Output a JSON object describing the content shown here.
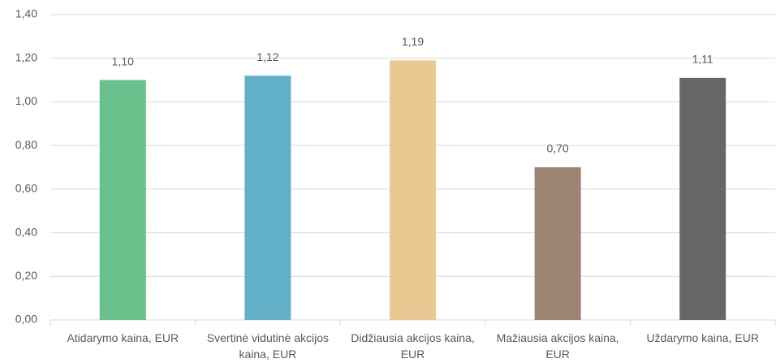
{
  "chart_data": {
    "type": "bar",
    "categories": [
      "Atidarymo kaina, EUR",
      "Svertinė vidutinė akcijos kaina, EUR",
      "Didžiausia akcijos kaina, EUR",
      "Mažiausia akcijos kaina, EUR",
      "Uždarymo kaina, EUR"
    ],
    "values": [
      1.1,
      1.12,
      1.19,
      0.7,
      1.11
    ],
    "value_labels": [
      "1,10",
      "1,12",
      "1,19",
      "0,70",
      "1,11"
    ],
    "colors": [
      "#68c18a",
      "#62afc8",
      "#e9c992",
      "#9c8373",
      "#676767"
    ],
    "ylim": [
      0,
      1.4
    ],
    "yticks": [
      {
        "value": 0,
        "label": "0,00"
      },
      {
        "value": 0.2,
        "label": "0,20"
      },
      {
        "value": 0.4,
        "label": "0,40"
      },
      {
        "value": 0.6,
        "label": "0,60"
      },
      {
        "value": 0.8,
        "label": "0,80"
      },
      {
        "value": 1.0,
        "label": "1,00"
      },
      {
        "value": 1.2,
        "label": "1,20"
      },
      {
        "value": 1.4,
        "label": "1,40"
      }
    ],
    "grid": true
  }
}
